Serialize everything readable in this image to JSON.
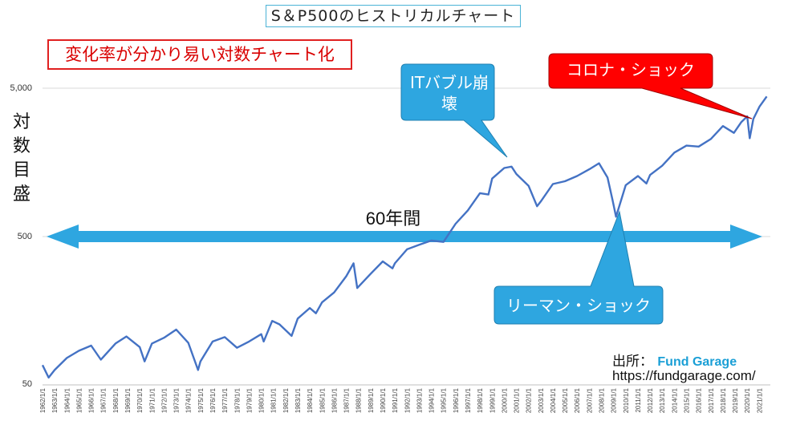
{
  "title": "S＆P500のヒストリカルチャート",
  "note": "変化率が分かり易い対数チャート化",
  "y_axis_label": "対数目盛",
  "span_label": "60年間",
  "callouts": {
    "it_bubble": "ITバブル崩壊",
    "covid": "コロナ・ショック",
    "lehman": "リーマン・ショック"
  },
  "source": {
    "prefix": "出所：",
    "brand": "Fund Garage",
    "url": "https://fundgarage.com/"
  },
  "colors": {
    "line": "#4472c4",
    "arrow": "#2ea6e0",
    "callout_blue": "#2ea6e0",
    "callout_red": "#ff0000"
  },
  "chart_data": {
    "type": "line",
    "title": "S＆P500のヒストリカルチャート",
    "ylabel": "対数目盛",
    "yscale": "log",
    "ylim": [
      50,
      10000
    ],
    "yticks": [
      50,
      500,
      5000
    ],
    "ytick_labels": [
      "50",
      "500",
      "5,000"
    ],
    "grid": true,
    "xtick_labels": [
      "1962/1/1",
      "1963/1/1",
      "1964/1/1",
      "1965/1/1",
      "1966/1/1",
      "1967/1/1",
      "1968/1/1",
      "1969/1/1",
      "1970/1/1",
      "1971/1/1",
      "1972/1/1",
      "1973/1/1",
      "1974/1/1",
      "1975/1/1",
      "1976/1/1",
      "1977/1/1",
      "1978/1/1",
      "1979/1/1",
      "1980/1/1",
      "1981/1/1",
      "1982/1/1",
      "1983/1/1",
      "1984/1/1",
      "1985/1/1",
      "1986/1/1",
      "1987/1/1",
      "1988/1/1",
      "1989/1/1",
      "1990/1/1",
      "1991/1/1",
      "1992/1/1",
      "1993/1/1",
      "1994/1/1",
      "1995/1/1",
      "1996/1/1",
      "1997/1/1",
      "1998/1/1",
      "1999/1/1",
      "2000/1/1",
      "2001/1/1",
      "2002/1/1",
      "2003/1/1",
      "2004/1/1",
      "2005/1/1",
      "2006/1/1",
      "2007/1/1",
      "2008/1/1",
      "2009/1/1",
      "2010/1/1",
      "2011/1/1",
      "2012/1/1",
      "2013/1/1",
      "2014/1/1",
      "2015/1/1",
      "2016/1/1",
      "2017/1/1",
      "2018/1/1",
      "2019/1/1",
      "2020/1/1",
      "2021/1/1"
    ],
    "series": [
      {
        "values": [
          [
            1962.0,
            68
          ],
          [
            1962.5,
            56
          ],
          [
            1963.0,
            63
          ],
          [
            1964.0,
            76
          ],
          [
            1965.0,
            85
          ],
          [
            1966.0,
            92
          ],
          [
            1966.8,
            74
          ],
          [
            1968.0,
            95
          ],
          [
            1968.9,
            106
          ],
          [
            1970.0,
            90
          ],
          [
            1970.4,
            72
          ],
          [
            1971.0,
            95
          ],
          [
            1972.0,
            104
          ],
          [
            1973.0,
            118
          ],
          [
            1974.0,
            96
          ],
          [
            1974.8,
            63
          ],
          [
            1975.0,
            72
          ],
          [
            1976.0,
            98
          ],
          [
            1977.0,
            105
          ],
          [
            1978.0,
            89
          ],
          [
            1979.0,
            98
          ],
          [
            1980.0,
            110
          ],
          [
            1980.2,
            98
          ],
          [
            1980.9,
            135
          ],
          [
            1981.5,
            128
          ],
          [
            1982.5,
            107
          ],
          [
            1983.0,
            140
          ],
          [
            1984.0,
            165
          ],
          [
            1984.5,
            152
          ],
          [
            1985.0,
            180
          ],
          [
            1986.0,
            210
          ],
          [
            1987.0,
            270
          ],
          [
            1987.6,
            330
          ],
          [
            1987.9,
            225
          ],
          [
            1989.0,
            280
          ],
          [
            1990.0,
            340
          ],
          [
            1990.8,
            305
          ],
          [
            1991.0,
            330
          ],
          [
            1992.0,
            410
          ],
          [
            1993.0,
            440
          ],
          [
            1994.0,
            470
          ],
          [
            1995.0,
            460
          ],
          [
            1996.0,
            610
          ],
          [
            1997.0,
            750
          ],
          [
            1998.0,
            980
          ],
          [
            1998.7,
            960
          ],
          [
            1999.0,
            1230
          ],
          [
            2000.0,
            1450
          ],
          [
            2000.6,
            1480
          ],
          [
            2001.0,
            1320
          ],
          [
            2002.0,
            1100
          ],
          [
            2002.7,
            800
          ],
          [
            2003.0,
            860
          ],
          [
            2004.0,
            1130
          ],
          [
            2005.0,
            1180
          ],
          [
            2006.0,
            1280
          ],
          [
            2007.0,
            1420
          ],
          [
            2007.8,
            1560
          ],
          [
            2008.5,
            1250
          ],
          [
            2008.9,
            890
          ],
          [
            2009.2,
            680
          ],
          [
            2010.0,
            1110
          ],
          [
            2011.0,
            1280
          ],
          [
            2011.7,
            1140
          ],
          [
            2012.0,
            1300
          ],
          [
            2013.0,
            1500
          ],
          [
            2014.0,
            1840
          ],
          [
            2015.0,
            2050
          ],
          [
            2016.0,
            2020
          ],
          [
            2017.0,
            2270
          ],
          [
            2018.0,
            2780
          ],
          [
            2018.9,
            2500
          ],
          [
            2019.5,
            2950
          ],
          [
            2020.0,
            3230
          ],
          [
            2020.2,
            2300
          ],
          [
            2020.5,
            3100
          ],
          [
            2021.0,
            3750
          ],
          [
            2021.6,
            4400
          ]
        ]
      }
    ]
  }
}
